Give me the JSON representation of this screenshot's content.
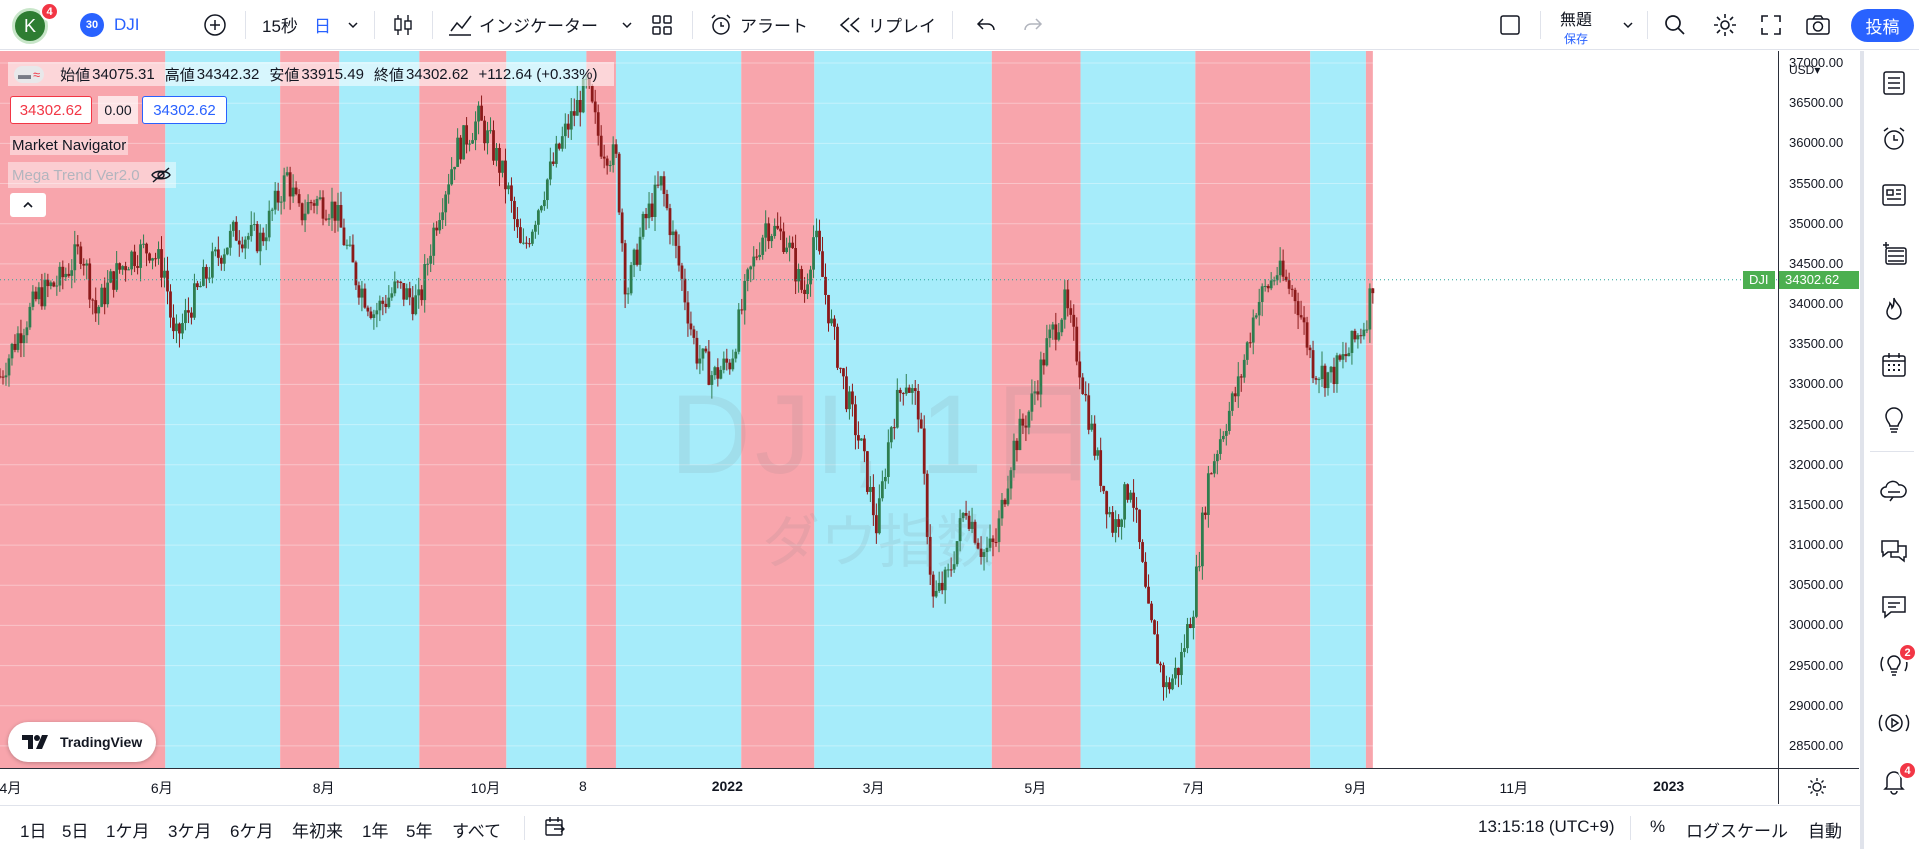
{
  "topbar": {
    "avatar_letter": "K",
    "avatar_badge": "4",
    "symbol_badge": "30",
    "symbol": "DJI",
    "interval_1": "15秒",
    "interval_2": "日",
    "indicators_label": "インジケーター",
    "alert_label": "アラート",
    "replay_label": "リプレイ",
    "layout_title": "無題",
    "layout_save": "保存",
    "post_label": "投稿"
  },
  "legend": {
    "open_label": "始値",
    "open": "34075.31",
    "high_label": "高値",
    "high": "34342.32",
    "low_label": "安値",
    "low": "33915.49",
    "close_label": "終値",
    "close": "34302.62",
    "change": "+112.64 (+0.33%)",
    "bid": "34302.62",
    "spread": "0.00",
    "ask": "34302.62",
    "indicator_1": "Market Navigator",
    "indicator_2": "Mega Trend Ver2.0"
  },
  "watermark": {
    "line1": "DJI, 1日",
    "line2": "ダウ指数"
  },
  "logo_text": "TradingView",
  "price_axis": {
    "currency": "USD",
    "ticks": [
      "37000.00",
      "36500.00",
      "36000.00",
      "35500.00",
      "35000.00",
      "34500.00",
      "34000.00",
      "33500.00",
      "33000.00",
      "32500.00",
      "32000.00",
      "31500.00",
      "31000.00",
      "30500.00",
      "30000.00",
      "29500.00",
      "29000.00",
      "28500.00"
    ],
    "last_symbol": "DJI",
    "last_price": "34302.62"
  },
  "time_axis": {
    "labels": [
      {
        "t": "4月",
        "bold": false
      },
      {
        "t": "6月",
        "bold": false
      },
      {
        "t": "8月",
        "bold": false
      },
      {
        "t": "10月",
        "bold": false
      },
      {
        "t": "8",
        "bold": false
      },
      {
        "t": "2022",
        "bold": true
      },
      {
        "t": "3月",
        "bold": false
      },
      {
        "t": "5月",
        "bold": false
      },
      {
        "t": "7月",
        "bold": false
      },
      {
        "t": "9月",
        "bold": false
      },
      {
        "t": "11月",
        "bold": false
      },
      {
        "t": "2023",
        "bold": true
      }
    ]
  },
  "bottombar": {
    "ranges": [
      "1日",
      "5日",
      "1ケ月",
      "3ケ月",
      "6ケ月",
      "年初来",
      "1年",
      "5年",
      "すべて"
    ],
    "time": "13:15:18 (UTC+9)",
    "percent": "%",
    "log": "ログスケール",
    "auto": "自動"
  },
  "sidebar_badges": {
    "ideas": "2",
    "alerts": "4"
  },
  "colors": {
    "up": "#2e7d4f",
    "down": "#8b1a1a",
    "bg_red": "#f8a5ac",
    "bg_blue": "#a6ecfa",
    "accent": "#2962ff"
  },
  "chart_data": {
    "type": "candlestick",
    "title": "DJI, 1日",
    "ylim": [
      28300,
      37100
    ],
    "regimes": [
      {
        "type": "bear",
        "from": 0.0,
        "to": 0.095
      },
      {
        "type": "bull",
        "from": 0.095,
        "to": 0.161
      },
      {
        "type": "bear",
        "from": 0.161,
        "to": 0.195
      },
      {
        "type": "bull",
        "from": 0.195,
        "to": 0.241
      },
      {
        "type": "bear",
        "from": 0.241,
        "to": 0.291
      },
      {
        "type": "bull",
        "from": 0.291,
        "to": 0.337
      },
      {
        "type": "bear",
        "from": 0.337,
        "to": 0.354
      },
      {
        "type": "bull",
        "from": 0.354,
        "to": 0.426
      },
      {
        "type": "bear",
        "from": 0.426,
        "to": 0.468
      },
      {
        "type": "bull",
        "from": 0.468,
        "to": 0.57
      },
      {
        "type": "bear",
        "from": 0.57,
        "to": 0.621
      },
      {
        "type": "bull",
        "from": 0.621,
        "to": 0.687
      },
      {
        "type": "bear",
        "from": 0.687,
        "to": 0.753
      },
      {
        "type": "bull",
        "from": 0.753,
        "to": 0.785
      },
      {
        "type": "bear",
        "from": 0.785,
        "to": 0.789
      }
    ],
    "path": [
      [
        0.0,
        33100
      ],
      [
        0.01,
        33600
      ],
      [
        0.022,
        34100
      ],
      [
        0.035,
        34300
      ],
      [
        0.047,
        34700
      ],
      [
        0.055,
        33900
      ],
      [
        0.064,
        34300
      ],
      [
        0.075,
        34600
      ],
      [
        0.086,
        34700
      ],
      [
        0.095,
        34400
      ],
      [
        0.1,
        33500
      ],
      [
        0.11,
        34000
      ],
      [
        0.122,
        34500
      ],
      [
        0.135,
        34900
      ],
      [
        0.15,
        34800
      ],
      [
        0.165,
        35600
      ],
      [
        0.172,
        35100
      ],
      [
        0.18,
        35300
      ],
      [
        0.192,
        35200
      ],
      [
        0.205,
        34300
      ],
      [
        0.215,
        33900
      ],
      [
        0.228,
        34200
      ],
      [
        0.241,
        34000
      ],
      [
        0.25,
        35000
      ],
      [
        0.262,
        35900
      ],
      [
        0.275,
        36300
      ],
      [
        0.286,
        35800
      ],
      [
        0.292,
        35400
      ],
      [
        0.3,
        34600
      ],
      [
        0.312,
        35400
      ],
      [
        0.326,
        36200
      ],
      [
        0.337,
        36700
      ],
      [
        0.345,
        36000
      ],
      [
        0.354,
        35800
      ],
      [
        0.36,
        34100
      ],
      [
        0.37,
        35000
      ],
      [
        0.38,
        35500
      ],
      [
        0.39,
        34500
      ],
      [
        0.4,
        33400
      ],
      [
        0.41,
        33100
      ],
      [
        0.42,
        33300
      ],
      [
        0.43,
        34300
      ],
      [
        0.44,
        35000
      ],
      [
        0.452,
        34800
      ],
      [
        0.462,
        34100
      ],
      [
        0.468,
        34900
      ],
      [
        0.478,
        33700
      ],
      [
        0.486,
        32900
      ],
      [
        0.495,
        32200
      ],
      [
        0.504,
        31200
      ],
      [
        0.512,
        32500
      ],
      [
        0.52,
        33100
      ],
      [
        0.528,
        32700
      ],
      [
        0.536,
        30300
      ],
      [
        0.545,
        30600
      ],
      [
        0.555,
        31500
      ],
      [
        0.565,
        30900
      ],
      [
        0.572,
        31000
      ],
      [
        0.582,
        32200
      ],
      [
        0.592,
        32700
      ],
      [
        0.602,
        33500
      ],
      [
        0.612,
        34000
      ],
      [
        0.62,
        33300
      ],
      [
        0.63,
        32100
      ],
      [
        0.64,
        31200
      ],
      [
        0.65,
        31800
      ],
      [
        0.66,
        30100
      ],
      [
        0.67,
        29200
      ],
      [
        0.678,
        29500
      ],
      [
        0.686,
        30300
      ],
      [
        0.694,
        31800
      ],
      [
        0.702,
        32400
      ],
      [
        0.712,
        33000
      ],
      [
        0.722,
        34000
      ],
      [
        0.734,
        34400
      ],
      [
        0.745,
        34100
      ],
      [
        0.755,
        33200
      ],
      [
        0.765,
        33100
      ],
      [
        0.775,
        33400
      ],
      [
        0.785,
        33800
      ],
      [
        0.789,
        34302
      ]
    ]
  }
}
